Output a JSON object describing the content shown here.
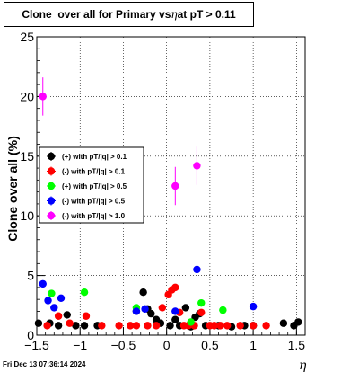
{
  "title": {
    "prefix": "Clone  over all for Primary vs",
    "eta": "η",
    "suffix": "at pT > 0.11"
  },
  "footer": {
    "timestamp": "Fri Dec 13 07:36:14 2024"
  },
  "colors": {
    "black": "#000000",
    "red": "#ff0000",
    "green": "#00ff00",
    "blue": "#0000ff",
    "magenta": "#ff00ff"
  },
  "chart_data": {
    "type": "scatter",
    "xlabel": "η",
    "ylabel": "Clone  over all (%)",
    "xlim": [
      -1.5,
      1.6
    ],
    "ylim": [
      0,
      25
    ],
    "x_ticks": [
      -1.5,
      -1,
      -0.5,
      0,
      0.5,
      1,
      1.5
    ],
    "x_tick_labels": [
      "−1.5",
      "−1",
      "−0.5",
      "0",
      "0.5",
      "1",
      "1.5"
    ],
    "y_ticks": [
      0,
      5,
      10,
      15,
      20,
      25
    ],
    "y_tick_labels": [
      "0",
      "5",
      "10",
      "15",
      "20",
      "25"
    ],
    "grid": true,
    "legend_position": "middle-left",
    "series": [
      {
        "name": "(+) with pT/|q| > 0.1",
        "color": "#000000",
        "points": [
          [
            -1.48,
            1.0
          ],
          [
            -1.35,
            1.0
          ],
          [
            -1.25,
            0.8
          ],
          [
            -1.15,
            1.7
          ],
          [
            -1.05,
            0.8
          ],
          [
            -0.95,
            0.8
          ],
          [
            -0.8,
            0.8
          ],
          [
            -0.35,
            2.0
          ],
          [
            -0.27,
            3.6
          ],
          [
            -0.22,
            2.2
          ],
          [
            -0.18,
            1.8
          ],
          [
            -0.12,
            1.3
          ],
          [
            -0.07,
            1.0
          ],
          [
            0.04,
            0.8
          ],
          [
            0.1,
            1.3
          ],
          [
            0.15,
            0.8
          ],
          [
            0.22,
            2.3
          ],
          [
            0.28,
            0.7
          ],
          [
            0.33,
            1.5
          ],
          [
            0.38,
            1.8
          ],
          [
            0.45,
            0.8
          ],
          [
            0.6,
            0.8
          ],
          [
            0.75,
            0.7
          ],
          [
            0.9,
            0.8
          ],
          [
            1.0,
            0.8
          ],
          [
            1.35,
            1.0
          ],
          [
            1.47,
            0.8
          ],
          [
            1.52,
            1.1
          ]
        ],
        "yerr": 0.2
      },
      {
        "name": "(-) with pT/|q| > 0.1",
        "color": "#ff0000",
        "points": [
          [
            -1.38,
            0.8
          ],
          [
            -1.25,
            1.6
          ],
          [
            -1.12,
            1.0
          ],
          [
            -0.93,
            1.6
          ],
          [
            -0.75,
            0.8
          ],
          [
            -0.55,
            0.8
          ],
          [
            -0.42,
            0.8
          ],
          [
            -0.35,
            0.8
          ],
          [
            -0.22,
            0.8
          ],
          [
            -0.12,
            0.8
          ],
          [
            -0.05,
            2.3
          ],
          [
            0.02,
            3.4
          ],
          [
            0.06,
            3.8
          ],
          [
            0.1,
            4.0
          ],
          [
            0.15,
            1.9
          ],
          [
            0.2,
            0.8
          ],
          [
            0.25,
            0.8
          ],
          [
            0.32,
            0.8
          ],
          [
            0.4,
            1.9
          ],
          [
            0.5,
            0.8
          ],
          [
            0.55,
            0.8
          ],
          [
            0.62,
            0.8
          ],
          [
            0.7,
            0.8
          ],
          [
            0.85,
            0.8
          ],
          [
            1.0,
            0.8
          ],
          [
            1.15,
            0.8
          ]
        ],
        "yerr": 0.2
      },
      {
        "name": "(+) with pT/|q| > 0.5",
        "color": "#00ff00",
        "points": [
          [
            -1.33,
            3.5
          ],
          [
            -0.95,
            3.6
          ],
          [
            -0.35,
            2.3
          ],
          [
            0.28,
            1.1
          ],
          [
            0.4,
            2.7
          ],
          [
            0.65,
            2.1
          ]
        ],
        "yerr": 0.3
      },
      {
        "name": "(-) with pT/|q| > 0.5",
        "color": "#0000ff",
        "points": [
          [
            -1.43,
            4.3
          ],
          [
            -1.37,
            2.9
          ],
          [
            -1.3,
            2.3
          ],
          [
            -1.22,
            3.1
          ],
          [
            -0.35,
            2.0
          ],
          [
            -0.25,
            2.2
          ],
          [
            0.1,
            2.0
          ],
          [
            0.35,
            5.5
          ],
          [
            1.0,
            2.4
          ]
        ],
        "yerr": 0.3
      },
      {
        "name": "(-) with pT/|q| > 1.0",
        "color": "#ff00ff",
        "points": [
          [
            -1.43,
            20.0
          ],
          [
            0.1,
            12.5
          ],
          [
            0.35,
            14.2
          ]
        ],
        "yerr": 1.6
      }
    ]
  }
}
